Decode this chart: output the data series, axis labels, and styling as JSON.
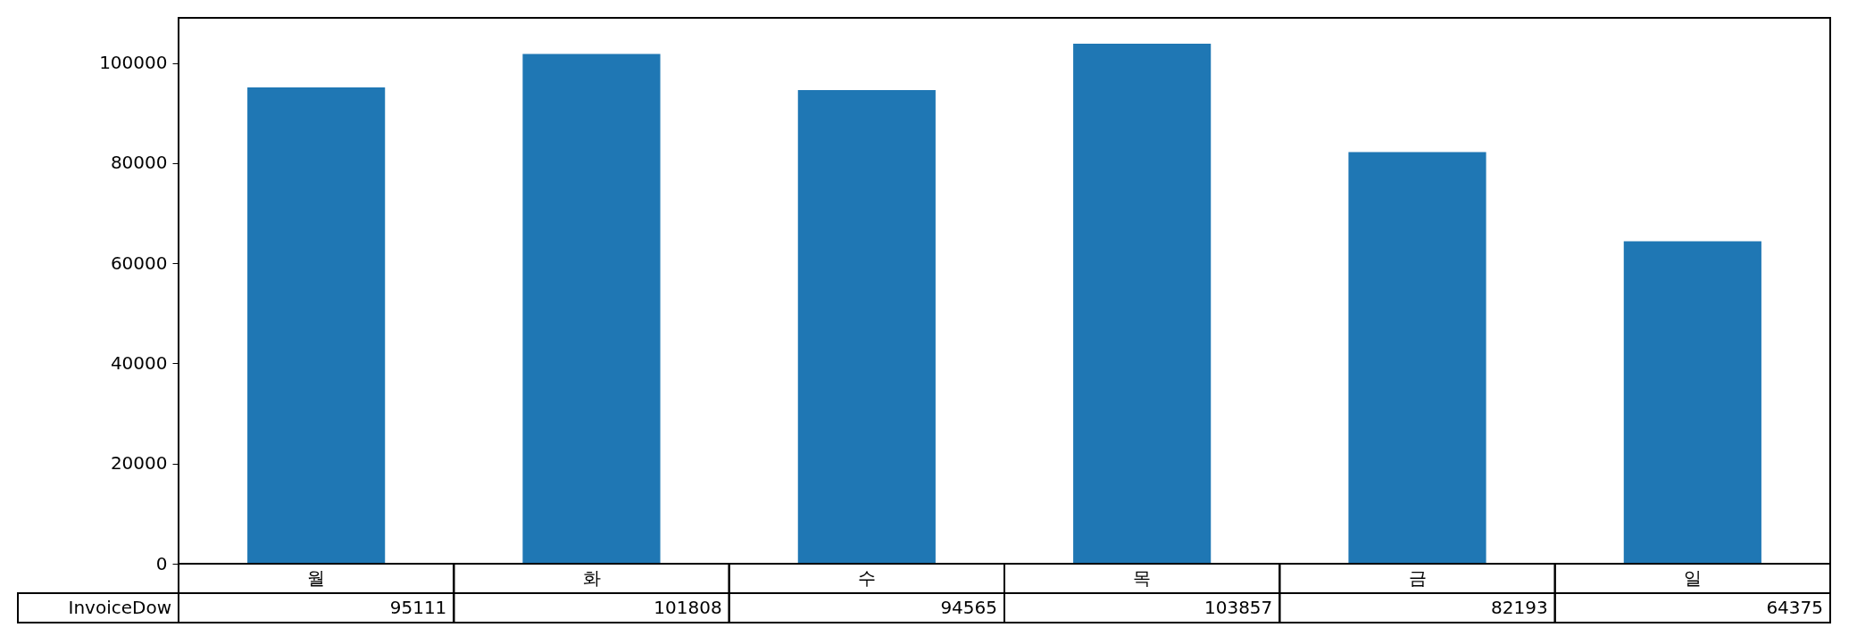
{
  "chart_data": {
    "type": "bar",
    "categories": [
      "월",
      "화",
      "수",
      "목",
      "금",
      "일"
    ],
    "series": [
      {
        "name": "InvoiceDow",
        "color": "#1f77b4",
        "values": [
          95111,
          101808,
          94565,
          103857,
          82193,
          64375
        ]
      }
    ],
    "ylim": [
      0,
      109000
    ],
    "yticks": [
      0,
      20000,
      40000,
      60000,
      80000,
      100000
    ],
    "grid": false,
    "data_labels": true
  }
}
